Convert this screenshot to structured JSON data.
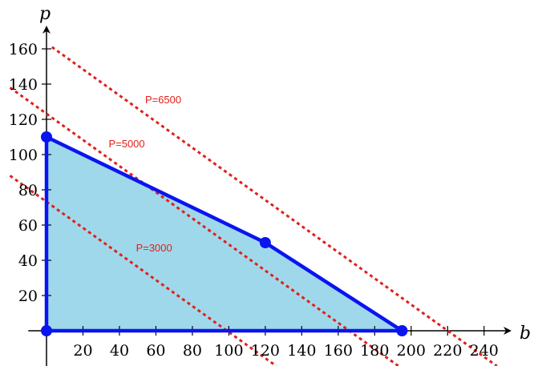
{
  "chart_data": {
    "type": "line",
    "xlabel": "b",
    "ylabel": "p",
    "xlim": [
      -10,
      252
    ],
    "ylim": [
      -22,
      170
    ],
    "x_ticks": [
      20,
      40,
      60,
      80,
      100,
      120,
      140,
      160,
      180,
      200,
      220,
      240
    ],
    "y_ticks": [
      20,
      40,
      60,
      80,
      100,
      120,
      140,
      160
    ],
    "x_tick_labels": [
      "20",
      "40",
      "60",
      "80",
      "100",
      "120",
      "140",
      "160",
      "180",
      "200",
      "220",
      "240"
    ],
    "y_tick_labels": [
      "20",
      "40",
      "60",
      "80",
      "100",
      "120",
      "140",
      "160"
    ],
    "grid": false,
    "feasible_region": {
      "vertices": [
        [
          0,
          0
        ],
        [
          0,
          110
        ],
        [
          120,
          50
        ],
        [
          195,
          0
        ]
      ],
      "fill_color": "#9fd8ea",
      "edge_color": "#0a14f0"
    },
    "vertex_points": [
      {
        "x": 0,
        "y": 0
      },
      {
        "x": 0,
        "y": 110
      },
      {
        "x": 120,
        "y": 50
      },
      {
        "x": 195,
        "y": 0
      }
    ],
    "series": [
      {
        "name": "P=3000",
        "x": [
          -20,
          126
        ],
        "y": [
          88,
          -20
        ],
        "color": "#e0201a",
        "style": "dotted"
      },
      {
        "name": "P=5000",
        "x": [
          -20,
          193
        ],
        "y": [
          138,
          -20
        ],
        "color": "#e0201a",
        "style": "dotted"
      },
      {
        "name": "P=6500",
        "x": [
          3,
          247
        ],
        "y": [
          161,
          -20
        ],
        "color": "#e0201a",
        "style": "dotted"
      }
    ],
    "annotations": [
      {
        "text": "P=6500",
        "x": 64,
        "y": 129
      },
      {
        "text": "P=5000",
        "x": 44,
        "y": 104
      },
      {
        "text": "P=3000",
        "x": 59,
        "y": 45
      }
    ]
  }
}
